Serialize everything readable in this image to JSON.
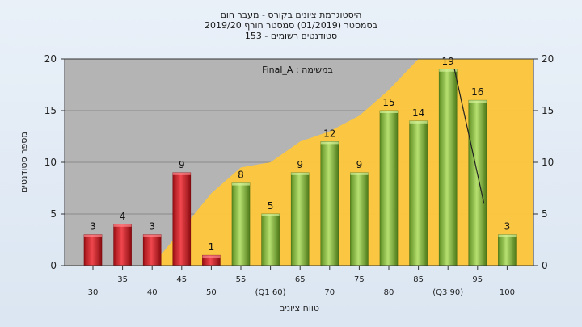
{
  "chart_data": {
    "type": "bar",
    "title_lines": [
      "היסטוגרמת ציונים בקורס - מעבר חום",
      "בסמסטר  (01/2019)  סמסטר חורף  2019/20",
      "סטודנטים רשומים - 153"
    ],
    "annotation": "Final_A : במשימה",
    "xlabel": "טווח ציונים",
    "ylabel": "מספר סטודנטים",
    "ylim": [
      0,
      20
    ],
    "y_ticks": [
      0,
      5,
      10,
      15,
      20
    ],
    "categories": [
      "30",
      "35",
      "40",
      "45",
      "50",
      "55",
      "(Q1 60)",
      "65",
      "70",
      "75",
      "80",
      "85",
      "(Q3 90)",
      "95",
      "100"
    ],
    "values": [
      3,
      4,
      3,
      9,
      1,
      8,
      5,
      9,
      12,
      9,
      15,
      14,
      19,
      16,
      3
    ],
    "bar_colors": [
      "#d8282e",
      "#d8282e",
      "#d8282e",
      "#d8282e",
      "#d8282e",
      "#8ec443",
      "#8ec443",
      "#8ec443",
      "#8ec443",
      "#8ec443",
      "#8ec443",
      "#8ec443",
      "#8ec443",
      "#8ec443",
      "#8ec443"
    ],
    "area_series": [
      null,
      null,
      0,
      3.5,
      7,
      9.5,
      10,
      12,
      13,
      14.5,
      17,
      20,
      20,
      20,
      20
    ],
    "area_color": "#ffc83c",
    "line_series": [
      null,
      null,
      null,
      null,
      null,
      null,
      null,
      null,
      null,
      null,
      null,
      null,
      19,
      6,
      null
    ],
    "grid": "horizontal",
    "plot_background": "#b4b4b4"
  }
}
